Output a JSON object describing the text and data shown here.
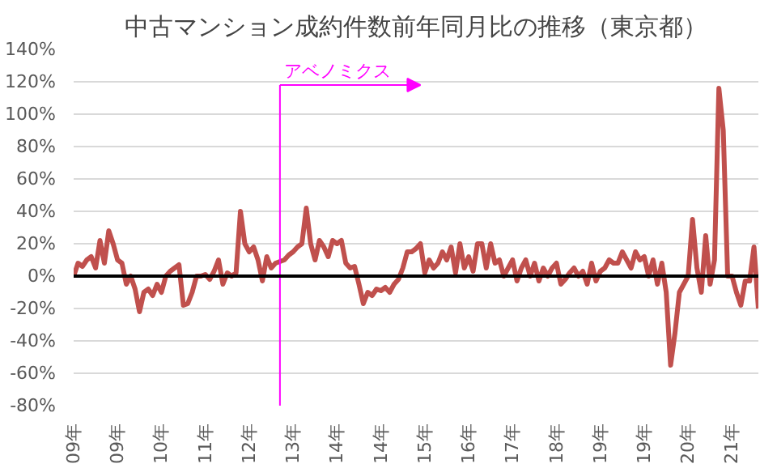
{
  "chart_data": {
    "type": "line",
    "title": "中古マンション成約件数前年同月比の推移（東京都）",
    "x": [
      "2009-01",
      "2009-02",
      "2009-03",
      "2009-04",
      "2009-05",
      "2009-06",
      "2009-07",
      "2009-08",
      "2009-09",
      "2009-10",
      "2009-11",
      "2009-12",
      "2010-01",
      "2010-02",
      "2010-03",
      "2010-04",
      "2010-05",
      "2010-06",
      "2010-07",
      "2010-08",
      "2010-09",
      "2010-10",
      "2010-11",
      "2010-12",
      "2011-01",
      "2011-02",
      "2011-03",
      "2011-04",
      "2011-05",
      "2011-06",
      "2011-07",
      "2011-08",
      "2011-09",
      "2011-10",
      "2011-11",
      "2011-12",
      "2012-01",
      "2012-02",
      "2012-03",
      "2012-04",
      "2012-05",
      "2012-06",
      "2012-07",
      "2012-08",
      "2012-09",
      "2012-10",
      "2012-11",
      "2012-12",
      "2013-01",
      "2013-02",
      "2013-03",
      "2013-04",
      "2013-05",
      "2013-06",
      "2013-07",
      "2013-08",
      "2013-09",
      "2013-10",
      "2013-11",
      "2013-12",
      "2014-01",
      "2014-02",
      "2014-03",
      "2014-04",
      "2014-05",
      "2014-06",
      "2014-07",
      "2014-08",
      "2014-09",
      "2014-10",
      "2014-11",
      "2014-12",
      "2015-01",
      "2015-02",
      "2015-03",
      "2015-04",
      "2015-05",
      "2015-06",
      "2015-07",
      "2015-08",
      "2015-09",
      "2015-10",
      "2015-11",
      "2015-12",
      "2016-01",
      "2016-02",
      "2016-03",
      "2016-04",
      "2016-05",
      "2016-06",
      "2016-07",
      "2016-08",
      "2016-09",
      "2016-10",
      "2016-11",
      "2016-12",
      "2017-01",
      "2017-02",
      "2017-03",
      "2017-04",
      "2017-05",
      "2017-06",
      "2017-07",
      "2017-08",
      "2017-09",
      "2017-10",
      "2017-11",
      "2017-12",
      "2018-01",
      "2018-02",
      "2018-03",
      "2018-04",
      "2018-05",
      "2018-06",
      "2018-07",
      "2018-08",
      "2018-09",
      "2018-10",
      "2018-11",
      "2018-12",
      "2019-01",
      "2019-02",
      "2019-03",
      "2019-04",
      "2019-05",
      "2019-06",
      "2019-07",
      "2019-08",
      "2019-09",
      "2019-10",
      "2019-11",
      "2019-12",
      "2020-01",
      "2020-02",
      "2020-03",
      "2020-04",
      "2020-05",
      "2020-06",
      "2020-07",
      "2020-08",
      "2020-09",
      "2020-10",
      "2020-11",
      "2020-12",
      "2021-01",
      "2021-02",
      "2021-03",
      "2021-04",
      "2021-05",
      "2021-06",
      "2021-07",
      "2021-08",
      "2021-09",
      "2021-10",
      "2021-11",
      "2021-12",
      "2022-01"
    ],
    "values": [
      0,
      8,
      6,
      10,
      12,
      5,
      22,
      8,
      28,
      20,
      10,
      8,
      -5,
      0,
      -8,
      -22,
      -10,
      -8,
      -12,
      -5,
      -10,
      0,
      3,
      5,
      7,
      -18,
      -17,
      -10,
      0,
      0,
      1,
      -2,
      3,
      10,
      -5,
      2,
      0,
      2,
      40,
      20,
      15,
      18,
      10,
      -3,
      12,
      5,
      8,
      9,
      10,
      13,
      15,
      18,
      20,
      42,
      20,
      10,
      22,
      18,
      12,
      22,
      20,
      22,
      8,
      5,
      6,
      -5,
      -17,
      -10,
      -12,
      -8,
      -9,
      -7,
      -10,
      -5,
      -2,
      5,
      15,
      15,
      17,
      20,
      2,
      10,
      5,
      8,
      15,
      10,
      18,
      2,
      20,
      5,
      12,
      3,
      20,
      20,
      5,
      20,
      8,
      10,
      0,
      5,
      10,
      -3,
      5,
      10,
      0,
      8,
      -3,
      5,
      0,
      5,
      8,
      -5,
      -2,
      2,
      5,
      0,
      3,
      -5,
      8,
      -3,
      3,
      5,
      10,
      8,
      8,
      15,
      10,
      5,
      15,
      10,
      12,
      0,
      10,
      -5,
      8,
      -10,
      -55,
      -35,
      -10,
      -5,
      0,
      35,
      5,
      -10,
      25,
      -5,
      10,
      116,
      90,
      0,
      0,
      -10,
      -18,
      -3,
      -3,
      18,
      -20
    ],
    "color": "#c0504d",
    "xlim": [
      "2009-01",
      "2022-01"
    ],
    "xticks": [
      {
        "value": "2009-01",
        "label": "09年"
      },
      {
        "value": "2009-11",
        "label": "09年"
      },
      {
        "value": "2010-09",
        "label": "10年"
      },
      {
        "value": "2011-07",
        "label": "11年"
      },
      {
        "value": "2012-05",
        "label": "12年"
      },
      {
        "value": "2013-03",
        "label": "13年"
      },
      {
        "value": "2014-01",
        "label": "14年"
      },
      {
        "value": "2014-11",
        "label": "14年"
      },
      {
        "value": "2015-09",
        "label": "15年"
      },
      {
        "value": "2016-07",
        "label": "16年"
      },
      {
        "value": "2017-05",
        "label": "17年"
      },
      {
        "value": "2018-03",
        "label": "18年"
      },
      {
        "value": "2019-01",
        "label": "19年"
      },
      {
        "value": "2019-11",
        "label": "19年"
      },
      {
        "value": "2020-09",
        "label": "20年"
      },
      {
        "value": "2021-07",
        "label": "21年"
      }
    ],
    "ylim": [
      -80,
      140
    ],
    "yticks": [
      {
        "value": -80,
        "label": "-80%"
      },
      {
        "value": -60,
        "label": "-60%"
      },
      {
        "value": -40,
        "label": "-40%"
      },
      {
        "value": -20,
        "label": "-20%"
      },
      {
        "value": 0,
        "label": "0%"
      },
      {
        "value": 20,
        "label": "20%"
      },
      {
        "value": 40,
        "label": "40%"
      },
      {
        "value": 60,
        "label": "60%"
      },
      {
        "value": 80,
        "label": "80%"
      },
      {
        "value": 100,
        "label": "100%"
      },
      {
        "value": 120,
        "label": "120%"
      },
      {
        "value": 140,
        "label": "140%"
      }
    ],
    "grid": "y",
    "marker": "none",
    "line_style": "solid",
    "ref_lines": [
      {
        "axis": "y",
        "value": 0,
        "color": "#000000"
      },
      {
        "axis": "x",
        "value": "2012-12",
        "label": "アベノミクス",
        "color": "#ff00ff"
      }
    ]
  }
}
